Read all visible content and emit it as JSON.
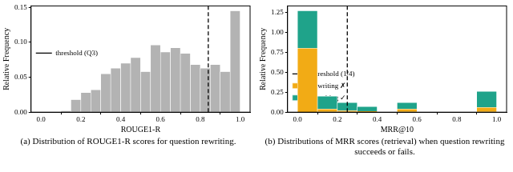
{
  "chart_data": [
    {
      "type": "histogram",
      "caption": "(a) Distribution of ROUGE1-R scores for question rewriting.",
      "x_label": "ROUGE1-R",
      "y_label": "Relative Frequency",
      "bins": [
        0.0,
        0.05,
        0.1,
        0.15,
        0.2,
        0.25,
        0.3,
        0.35,
        0.4,
        0.45,
        0.5,
        0.55,
        0.6,
        0.65,
        0.7,
        0.75,
        0.8,
        0.85,
        0.9,
        0.95,
        1.0
      ],
      "values": [
        0,
        0,
        0.002,
        0.018,
        0.028,
        0.032,
        0.055,
        0.063,
        0.07,
        0.078,
        0.058,
        0.096,
        0.086,
        0.092,
        0.084,
        0.068,
        0.063,
        0.068,
        0.058,
        0.145
      ],
      "color": "#b3b3b3",
      "threshold": {
        "x": 0.84,
        "name": "threshold (Q3)",
        "color": "#000000",
        "line_style": "dashed"
      },
      "xlim": [
        -0.05,
        1.05
      ],
      "xticks": [
        {
          "value": 0,
          "label": "0.0"
        },
        {
          "value": 0.2,
          "label": "0.2"
        },
        {
          "value": 0.4,
          "label": "0.4"
        },
        {
          "value": 0.6,
          "label": "0.6"
        },
        {
          "value": 0.8,
          "label": "0.8"
        },
        {
          "value": 1,
          "label": "1.0"
        }
      ],
      "ylim": [
        0,
        0.152
      ],
      "yticks": [
        {
          "value": 0,
          "label": "0.00"
        },
        {
          "value": 0.05,
          "label": "0.05"
        },
        {
          "value": 0.1,
          "label": "0.10"
        },
        {
          "value": 0.15,
          "label": "0.15"
        }
      ],
      "grid": false,
      "legend": "upper center"
    },
    {
      "type": "histogram",
      "caption": "(b) Distributions of MRR scores (retrieval) when question rewriting succeeds or fails.",
      "x_label": "MRR@10",
      "y_label": "Relative Frequency",
      "bins": [
        0.0,
        0.1,
        0.2,
        0.3,
        0.4,
        0.5,
        0.6,
        0.7,
        0.8,
        0.9,
        1.0
      ],
      "series": [
        {
          "name": "rewriting ✗",
          "color": "#f2ab15",
          "values": [
            0.8,
            0.04,
            0.02,
            0.01,
            0,
            0.04,
            0,
            0,
            0,
            0.06
          ]
        },
        {
          "name": "rewriting ✓",
          "color": "#1fa38a",
          "values": [
            0.47,
            0.16,
            0.1,
            0.06,
            0,
            0.08,
            0,
            0,
            0,
            0.2
          ]
        }
      ],
      "threshold": {
        "x": 0.25,
        "name": "threshold (1/4)",
        "color": "#000000",
        "line_style": "dashed"
      },
      "stacked": true,
      "xlim": [
        -0.05,
        1.05
      ],
      "xticks": [
        {
          "value": 0,
          "label": "0.0"
        },
        {
          "value": 0.2,
          "label": "0.2"
        },
        {
          "value": 0.4,
          "label": "0.4"
        },
        {
          "value": 0.6,
          "label": "0.6"
        },
        {
          "value": 0.8,
          "label": "0.8"
        },
        {
          "value": 1,
          "label": "1.0"
        }
      ],
      "ylim": [
        0,
        1.33
      ],
      "yticks": [
        {
          "value": 0,
          "label": "0.00"
        },
        {
          "value": 0.25,
          "label": "0.25"
        },
        {
          "value": 0.5,
          "label": "0.50"
        },
        {
          "value": 0.75,
          "label": "0.75"
        },
        {
          "value": 1,
          "label": "1.00"
        },
        {
          "value": 1.25,
          "label": "1.25"
        }
      ],
      "grid": false,
      "legend": "upper right"
    }
  ]
}
